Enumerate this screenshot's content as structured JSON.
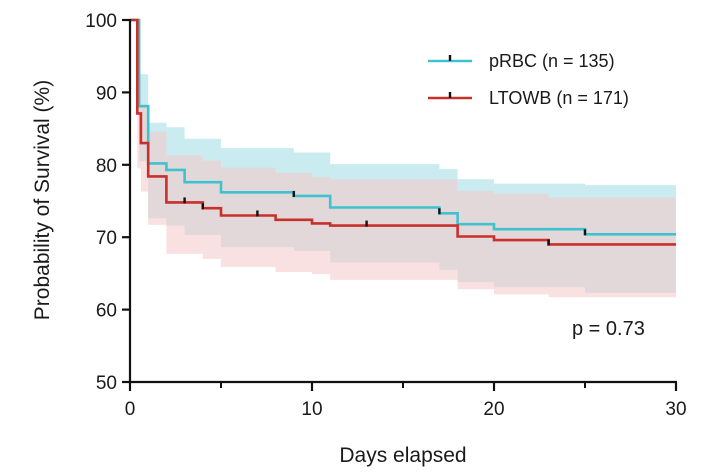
{
  "chart_data": {
    "type": "line",
    "subtype": "kaplan-meier-step",
    "xlabel": "Days elapsed",
    "ylabel": "Probability of Survival (%)",
    "xlim": [
      0,
      30
    ],
    "ylim": [
      50,
      100
    ],
    "x_ticks": [
      "0",
      "10",
      "20",
      "30"
    ],
    "x_tick_values": [
      0,
      10,
      20,
      30
    ],
    "x_minor_ticks": [
      5,
      15,
      25
    ],
    "y_ticks": [
      "50",
      "60",
      "70",
      "80",
      "90",
      "100"
    ],
    "y_tick_values": [
      50,
      60,
      70,
      80,
      90,
      100
    ],
    "grid": false,
    "legend_position": "top-right",
    "annotation": "p = 0.73",
    "series": [
      {
        "name": "pRBC (n = 135)",
        "color": "#3fc2cf",
        "band_color": "#9fdde3",
        "steps": [
          [
            0,
            100
          ],
          [
            0.5,
            88.1
          ],
          [
            1,
            80.2
          ],
          [
            2,
            79.3
          ],
          [
            3,
            77.6
          ],
          [
            5,
            76.2
          ],
          [
            9,
            75.7
          ],
          [
            11,
            74.1
          ],
          [
            17,
            73.3
          ],
          [
            18,
            71.8
          ],
          [
            20,
            71.1
          ],
          [
            25,
            70.4
          ],
          [
            30,
            70.4
          ]
        ],
        "ci_lower": [
          [
            0,
            100
          ],
          [
            0.5,
            80.5
          ],
          [
            1,
            72.6
          ],
          [
            2,
            71.6
          ],
          [
            3,
            70.3
          ],
          [
            5,
            68.6
          ],
          [
            9,
            68.1
          ],
          [
            11,
            66.5
          ],
          [
            17,
            65.5
          ],
          [
            18,
            63.8
          ],
          [
            20,
            63.1
          ],
          [
            25,
            62.3
          ],
          [
            30,
            62.3
          ]
        ],
        "ci_upper": [
          [
            0,
            100
          ],
          [
            0.5,
            92.5
          ],
          [
            1,
            85.8
          ],
          [
            2,
            85.2
          ],
          [
            3,
            83.6
          ],
          [
            5,
            82.3
          ],
          [
            9,
            81.7
          ],
          [
            11,
            80.1
          ],
          [
            17,
            79.4
          ],
          [
            18,
            78.0
          ],
          [
            20,
            77.4
          ],
          [
            25,
            77.2
          ],
          [
            30,
            77.2
          ]
        ],
        "censor_marks": [
          [
            9,
            75.7
          ],
          [
            17,
            73.3
          ],
          [
            25,
            70.4
          ]
        ]
      },
      {
        "name": "LTOWB (n = 171)",
        "color": "#c8302b",
        "band_color": "#f6c9c8",
        "steps": [
          [
            0,
            100
          ],
          [
            0.4,
            87.1
          ],
          [
            0.6,
            83.0
          ],
          [
            1,
            78.4
          ],
          [
            2,
            74.8
          ],
          [
            4,
            74.0
          ],
          [
            5,
            73.0
          ],
          [
            8,
            72.4
          ],
          [
            10,
            71.9
          ],
          [
            11,
            71.6
          ],
          [
            18,
            70.1
          ],
          [
            20,
            69.6
          ],
          [
            23,
            69.0
          ],
          [
            30,
            69.0
          ]
        ],
        "ci_lower": [
          [
            0,
            100
          ],
          [
            0.4,
            79.5
          ],
          [
            0.6,
            76.3
          ],
          [
            1,
            71.7
          ],
          [
            2,
            67.7
          ],
          [
            4,
            67.0
          ],
          [
            5,
            65.9
          ],
          [
            8,
            65.2
          ],
          [
            10,
            64.9
          ],
          [
            11,
            64.1
          ],
          [
            18,
            62.8
          ],
          [
            20,
            62.1
          ],
          [
            23,
            61.7
          ],
          [
            30,
            61.7
          ]
        ],
        "ci_upper": [
          [
            0,
            100
          ],
          [
            0.4,
            91.8
          ],
          [
            0.6,
            88.4
          ],
          [
            1,
            84.6
          ],
          [
            2,
            81.3
          ],
          [
            4,
            80.6
          ],
          [
            5,
            79.6
          ],
          [
            8,
            78.9
          ],
          [
            10,
            78.3
          ],
          [
            11,
            78.0
          ],
          [
            18,
            76.4
          ],
          [
            20,
            76.0
          ],
          [
            23,
            75.5
          ],
          [
            30,
            75.5
          ]
        ],
        "censor_marks": [
          [
            3,
            74.8
          ],
          [
            4,
            74.0
          ],
          [
            7,
            73.0
          ],
          [
            13,
            71.6
          ],
          [
            23,
            69.0
          ]
        ]
      }
    ]
  }
}
